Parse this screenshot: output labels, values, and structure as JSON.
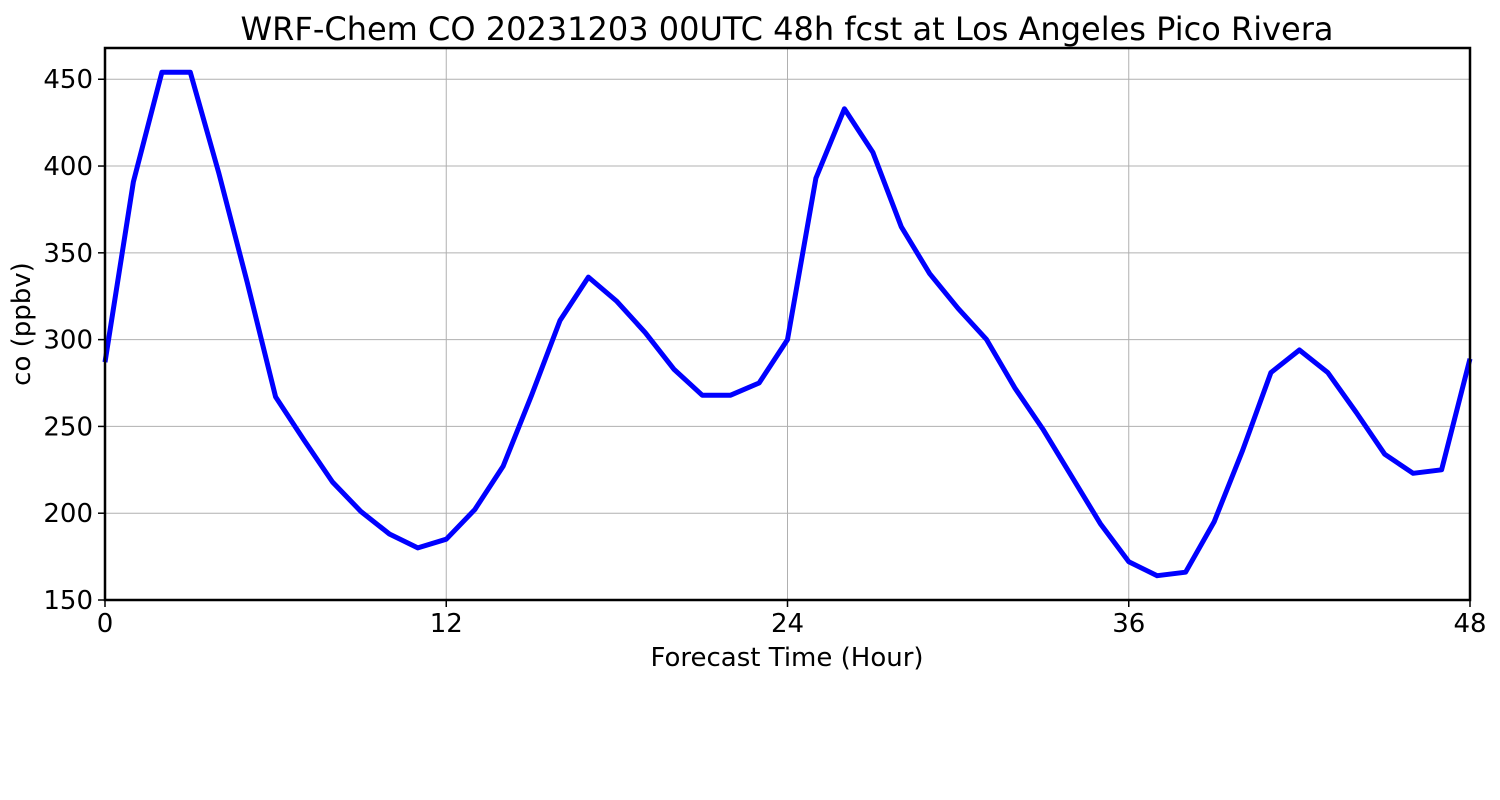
{
  "chart_data": {
    "type": "line",
    "title": "WRF-Chem CO  20231203 00UTC 48h fcst at Los Angeles Pico Rivera",
    "xlabel": "Forecast Time (Hour)",
    "ylabel": "co  (ppbv)",
    "xlim": [
      0,
      48
    ],
    "ylim": [
      150,
      468
    ],
    "xticks": [
      0,
      12,
      24,
      36,
      48
    ],
    "yticks": [
      150,
      200,
      250,
      300,
      350,
      400,
      450
    ],
    "grid": true,
    "series": [
      {
        "color": "#0000ff",
        "x": [
          0,
          1,
          2,
          3,
          4,
          5,
          6,
          7,
          8,
          9,
          10,
          11,
          12,
          13,
          14,
          15,
          16,
          17,
          18,
          19,
          20,
          21,
          22,
          23,
          24,
          25,
          26,
          27,
          28,
          29,
          30,
          31,
          32,
          33,
          34,
          35,
          36,
          37,
          38,
          39,
          40,
          41,
          42,
          43,
          44,
          45,
          46,
          47,
          48
        ],
        "y": [
          287,
          391,
          454,
          454,
          396,
          333,
          267,
          242,
          218,
          201,
          188,
          180,
          185,
          202,
          227,
          268,
          311,
          336,
          322,
          304,
          283,
          268,
          268,
          275,
          300,
          393,
          433,
          408,
          365,
          338,
          318,
          300,
          272,
          248,
          221,
          194,
          172,
          164,
          166,
          195,
          236,
          281,
          294,
          281,
          258,
          234,
          223,
          225,
          289
        ]
      }
    ]
  }
}
